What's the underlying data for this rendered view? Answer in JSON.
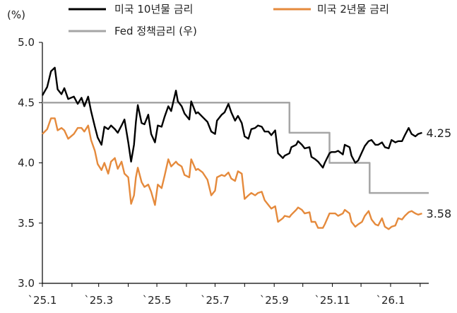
{
  "chart_data": {
    "type": "line",
    "ylabel": "(%)",
    "ylim": [
      3.0,
      5.0
    ],
    "yticks": [
      "5.0",
      "4.5",
      "4.0",
      "3.5",
      "3.0"
    ],
    "xticks": [
      "`25.1",
      "`25.3",
      "`25.5",
      "`25.7",
      "`25.9",
      "`25.11",
      "`26.1"
    ],
    "xlim": [
      "2025-01-01",
      "2026-02-10"
    ],
    "legend_position": "top",
    "series": [
      {
        "name": "미국 10년물 금리",
        "color": "#000000",
        "end_label": "4.25",
        "points": [
          [
            "2025-01-01",
            4.56
          ],
          [
            "2025-01-06",
            4.63
          ],
          [
            "2025-01-10",
            4.76
          ],
          [
            "2025-01-14",
            4.79
          ],
          [
            "2025-01-17",
            4.61
          ],
          [
            "2025-01-21",
            4.57
          ],
          [
            "2025-01-24",
            4.62
          ],
          [
            "2025-01-28",
            4.53
          ],
          [
            "2025-02-03",
            4.55
          ],
          [
            "2025-02-07",
            4.49
          ],
          [
            "2025-02-11",
            4.54
          ],
          [
            "2025-02-14",
            4.47
          ],
          [
            "2025-02-18",
            4.55
          ],
          [
            "2025-02-21",
            4.43
          ],
          [
            "2025-02-25",
            4.3
          ],
          [
            "2025-02-28",
            4.21
          ],
          [
            "2025-03-04",
            4.15
          ],
          [
            "2025-03-07",
            4.3
          ],
          [
            "2025-03-11",
            4.28
          ],
          [
            "2025-03-14",
            4.31
          ],
          [
            "2025-03-18",
            4.28
          ],
          [
            "2025-03-21",
            4.25
          ],
          [
            "2025-03-25",
            4.31
          ],
          [
            "2025-03-28",
            4.36
          ],
          [
            "2025-04-01",
            4.17
          ],
          [
            "2025-04-04",
            4.01
          ],
          [
            "2025-04-07",
            4.15
          ],
          [
            "2025-04-09",
            4.34
          ],
          [
            "2025-04-11",
            4.48
          ],
          [
            "2025-04-15",
            4.33
          ],
          [
            "2025-04-18",
            4.32
          ],
          [
            "2025-04-22",
            4.4
          ],
          [
            "2025-04-25",
            4.24
          ],
          [
            "2025-04-29",
            4.17
          ],
          [
            "2025-05-02",
            4.31
          ],
          [
            "2025-05-06",
            4.3
          ],
          [
            "2025-05-09",
            4.38
          ],
          [
            "2025-05-13",
            4.47
          ],
          [
            "2025-05-16",
            4.43
          ],
          [
            "2025-05-21",
            4.6
          ],
          [
            "2025-05-23",
            4.51
          ],
          [
            "2025-05-27",
            4.47
          ],
          [
            "2025-05-30",
            4.41
          ],
          [
            "2025-06-04",
            4.36
          ],
          [
            "2025-06-06",
            4.51
          ],
          [
            "2025-06-11",
            4.41
          ],
          [
            "2025-06-13",
            4.42
          ],
          [
            "2025-06-18",
            4.38
          ],
          [
            "2025-06-23",
            4.34
          ],
          [
            "2025-06-27",
            4.26
          ],
          [
            "2025-07-01",
            4.24
          ],
          [
            "2025-07-03",
            4.35
          ],
          [
            "2025-07-08",
            4.4
          ],
          [
            "2025-07-11",
            4.42
          ],
          [
            "2025-07-15",
            4.49
          ],
          [
            "2025-07-18",
            4.42
          ],
          [
            "2025-07-22",
            4.35
          ],
          [
            "2025-07-25",
            4.39
          ],
          [
            "2025-07-29",
            4.33
          ],
          [
            "2025-08-01",
            4.22
          ],
          [
            "2025-08-05",
            4.2
          ],
          [
            "2025-08-08",
            4.28
          ],
          [
            "2025-08-12",
            4.29
          ],
          [
            "2025-08-15",
            4.31
          ],
          [
            "2025-08-19",
            4.3
          ],
          [
            "2025-08-22",
            4.26
          ],
          [
            "2025-08-26",
            4.26
          ],
          [
            "2025-08-29",
            4.23
          ],
          [
            "2025-09-02",
            4.27
          ],
          [
            "2025-09-05",
            4.08
          ],
          [
            "2025-09-10",
            4.04
          ],
          [
            "2025-09-12",
            4.06
          ],
          [
            "2025-09-17",
            4.08
          ],
          [
            "2025-09-19",
            4.13
          ],
          [
            "2025-09-24",
            4.15
          ],
          [
            "2025-09-26",
            4.18
          ],
          [
            "2025-09-30",
            4.15
          ],
          [
            "2025-10-03",
            4.12
          ],
          [
            "2025-10-08",
            4.13
          ],
          [
            "2025-10-10",
            4.05
          ],
          [
            "2025-10-14",
            4.03
          ],
          [
            "2025-10-17",
            4.01
          ],
          [
            "2025-10-22",
            3.96
          ],
          [
            "2025-10-24",
            4.0
          ],
          [
            "2025-10-29",
            4.08
          ],
          [
            "2025-10-31",
            4.09
          ],
          [
            "2025-11-04",
            4.09
          ],
          [
            "2025-11-07",
            4.1
          ],
          [
            "2025-11-12",
            4.07
          ],
          [
            "2025-11-14",
            4.15
          ],
          [
            "2025-11-19",
            4.13
          ],
          [
            "2025-11-21",
            4.06
          ],
          [
            "2025-11-25",
            4.0
          ],
          [
            "2025-11-28",
            4.02
          ],
          [
            "2025-12-02",
            4.09
          ],
          [
            "2025-12-05",
            4.14
          ],
          [
            "2025-12-09",
            4.18
          ],
          [
            "2025-12-12",
            4.19
          ],
          [
            "2025-12-16",
            4.15
          ],
          [
            "2025-12-19",
            4.15
          ],
          [
            "2025-12-23",
            4.17
          ],
          [
            "2025-12-26",
            4.13
          ],
          [
            "2025-12-30",
            4.12
          ],
          [
            "2026-01-02",
            4.19
          ],
          [
            "2026-01-06",
            4.17
          ],
          [
            "2026-01-09",
            4.18
          ],
          [
            "2026-01-13",
            4.18
          ],
          [
            "2026-01-16",
            4.23
          ],
          [
            "2026-01-20",
            4.29
          ],
          [
            "2026-01-23",
            4.24
          ],
          [
            "2026-01-27",
            4.22
          ],
          [
            "2026-01-30",
            4.24
          ],
          [
            "2026-02-03",
            4.25
          ]
        ]
      },
      {
        "name": "미국 2년물 금리",
        "color": "#e58a3c",
        "end_label": "3.58",
        "points": [
          [
            "2025-01-01",
            4.24
          ],
          [
            "2025-01-06",
            4.28
          ],
          [
            "2025-01-10",
            4.37
          ],
          [
            "2025-01-14",
            4.37
          ],
          [
            "2025-01-17",
            4.27
          ],
          [
            "2025-01-21",
            4.29
          ],
          [
            "2025-01-24",
            4.27
          ],
          [
            "2025-01-28",
            4.2
          ],
          [
            "2025-02-03",
            4.24
          ],
          [
            "2025-02-07",
            4.29
          ],
          [
            "2025-02-11",
            4.29
          ],
          [
            "2025-02-14",
            4.26
          ],
          [
            "2025-02-18",
            4.31
          ],
          [
            "2025-02-21",
            4.19
          ],
          [
            "2025-02-25",
            4.1
          ],
          [
            "2025-02-28",
            3.99
          ],
          [
            "2025-03-04",
            3.94
          ],
          [
            "2025-03-07",
            4.0
          ],
          [
            "2025-03-11",
            3.91
          ],
          [
            "2025-03-14",
            4.01
          ],
          [
            "2025-03-18",
            4.04
          ],
          [
            "2025-03-21",
            3.95
          ],
          [
            "2025-03-25",
            4.01
          ],
          [
            "2025-03-28",
            3.91
          ],
          [
            "2025-04-01",
            3.88
          ],
          [
            "2025-04-04",
            3.66
          ],
          [
            "2025-04-07",
            3.73
          ],
          [
            "2025-04-09",
            3.88
          ],
          [
            "2025-04-11",
            3.96
          ],
          [
            "2025-04-15",
            3.84
          ],
          [
            "2025-04-18",
            3.8
          ],
          [
            "2025-04-22",
            3.82
          ],
          [
            "2025-04-25",
            3.76
          ],
          [
            "2025-04-29",
            3.65
          ],
          [
            "2025-05-02",
            3.82
          ],
          [
            "2025-05-06",
            3.79
          ],
          [
            "2025-05-09",
            3.89
          ],
          [
            "2025-05-13",
            4.03
          ],
          [
            "2025-05-16",
            3.97
          ],
          [
            "2025-05-21",
            4.01
          ],
          [
            "2025-05-23",
            3.99
          ],
          [
            "2025-05-27",
            3.97
          ],
          [
            "2025-05-30",
            3.9
          ],
          [
            "2025-06-04",
            3.88
          ],
          [
            "2025-06-06",
            4.03
          ],
          [
            "2025-06-11",
            3.94
          ],
          [
            "2025-06-13",
            3.95
          ],
          [
            "2025-06-18",
            3.92
          ],
          [
            "2025-06-23",
            3.86
          ],
          [
            "2025-06-27",
            3.73
          ],
          [
            "2025-07-01",
            3.77
          ],
          [
            "2025-07-03",
            3.88
          ],
          [
            "2025-07-08",
            3.9
          ],
          [
            "2025-07-11",
            3.89
          ],
          [
            "2025-07-15",
            3.92
          ],
          [
            "2025-07-18",
            3.87
          ],
          [
            "2025-07-22",
            3.85
          ],
          [
            "2025-07-25",
            3.93
          ],
          [
            "2025-07-29",
            3.91
          ],
          [
            "2025-08-01",
            3.7
          ],
          [
            "2025-08-05",
            3.73
          ],
          [
            "2025-08-08",
            3.75
          ],
          [
            "2025-08-12",
            3.73
          ],
          [
            "2025-08-15",
            3.75
          ],
          [
            "2025-08-19",
            3.76
          ],
          [
            "2025-08-22",
            3.69
          ],
          [
            "2025-08-26",
            3.65
          ],
          [
            "2025-08-29",
            3.62
          ],
          [
            "2025-09-02",
            3.64
          ],
          [
            "2025-09-05",
            3.51
          ],
          [
            "2025-09-10",
            3.54
          ],
          [
            "2025-09-12",
            3.56
          ],
          [
            "2025-09-17",
            3.55
          ],
          [
            "2025-09-19",
            3.57
          ],
          [
            "2025-09-24",
            3.61
          ],
          [
            "2025-09-26",
            3.63
          ],
          [
            "2025-09-30",
            3.61
          ],
          [
            "2025-10-03",
            3.58
          ],
          [
            "2025-10-08",
            3.59
          ],
          [
            "2025-10-10",
            3.51
          ],
          [
            "2025-10-14",
            3.51
          ],
          [
            "2025-10-17",
            3.46
          ],
          [
            "2025-10-22",
            3.46
          ],
          [
            "2025-10-24",
            3.49
          ],
          [
            "2025-10-29",
            3.58
          ],
          [
            "2025-10-31",
            3.58
          ],
          [
            "2025-11-04",
            3.58
          ],
          [
            "2025-11-07",
            3.56
          ],
          [
            "2025-11-12",
            3.58
          ],
          [
            "2025-11-14",
            3.61
          ],
          [
            "2025-11-19",
            3.58
          ],
          [
            "2025-11-21",
            3.51
          ],
          [
            "2025-11-25",
            3.47
          ],
          [
            "2025-11-28",
            3.49
          ],
          [
            "2025-12-02",
            3.51
          ],
          [
            "2025-12-05",
            3.56
          ],
          [
            "2025-12-09",
            3.6
          ],
          [
            "2025-12-12",
            3.53
          ],
          [
            "2025-12-16",
            3.49
          ],
          [
            "2025-12-19",
            3.48
          ],
          [
            "2025-12-23",
            3.54
          ],
          [
            "2025-12-26",
            3.47
          ],
          [
            "2025-12-30",
            3.45
          ],
          [
            "2026-01-02",
            3.47
          ],
          [
            "2026-01-06",
            3.48
          ],
          [
            "2026-01-09",
            3.54
          ],
          [
            "2026-01-13",
            3.53
          ],
          [
            "2026-01-16",
            3.56
          ],
          [
            "2026-01-20",
            3.59
          ],
          [
            "2026-01-23",
            3.6
          ],
          [
            "2026-01-27",
            3.58
          ],
          [
            "2026-01-30",
            3.57
          ],
          [
            "2026-02-03",
            3.58
          ]
        ]
      },
      {
        "name": "Fed 정책금리 (우)",
        "color": "#a6a6a6",
        "step": true,
        "points": [
          [
            "2025-01-01",
            4.5
          ],
          [
            "2025-09-17",
            4.25
          ],
          [
            "2025-10-29",
            4.0
          ],
          [
            "2025-12-10",
            3.75
          ],
          [
            "2026-02-10",
            3.75
          ]
        ]
      }
    ]
  }
}
